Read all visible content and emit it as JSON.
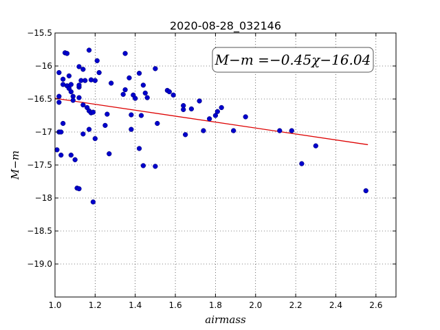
{
  "chart_data": {
    "type": "scatter",
    "title": "2020-08-28_032146",
    "xlabel": "airmass",
    "ylabel": "M−m",
    "xlim": [
      1.0,
      2.7
    ],
    "ylim": [
      -19.5,
      -15.5
    ],
    "y_inverted": true,
    "grid": true,
    "x_ticks": [
      1.0,
      1.2,
      1.4,
      1.6,
      1.8,
      2.0,
      2.2,
      2.4,
      2.6
    ],
    "x_tick_labels": [
      "1.0",
      "1.2",
      "1.4",
      "1.6",
      "1.8",
      "2.0",
      "2.2",
      "2.4",
      "2.6"
    ],
    "y_ticks": [
      -15.5,
      -16.0,
      -16.5,
      -17.0,
      -17.5,
      -18.0,
      -18.5,
      -19.0
    ],
    "y_tick_labels": [
      "−15.5",
      "−16",
      "−16.5",
      "−17",
      "−17.5",
      "−18",
      "−18.5",
      "−19.0"
    ],
    "annotation": "M−m =−0.45χ−16.04",
    "annotation_position": "top-right",
    "point_color": "#0000cc",
    "fit_color": "#dd0000",
    "fit": {
      "slope": -0.45,
      "intercept": -16.04,
      "x_range": [
        1.0,
        2.56
      ]
    },
    "points": [
      [
        1.01,
        -17.27
      ],
      [
        1.02,
        -16.1
      ],
      [
        1.02,
        -16.46
      ],
      [
        1.02,
        -16.55
      ],
      [
        1.02,
        -17.0
      ],
      [
        1.03,
        -17.0
      ],
      [
        1.03,
        -17.35
      ],
      [
        1.04,
        -16.87
      ],
      [
        1.04,
        -16.28
      ],
      [
        1.04,
        -16.2
      ],
      [
        1.05,
        -15.8
      ],
      [
        1.06,
        -15.81
      ],
      [
        1.06,
        -16.3
      ],
      [
        1.07,
        -16.15
      ],
      [
        1.07,
        -16.34
      ],
      [
        1.08,
        -16.28
      ],
      [
        1.08,
        -16.39
      ],
      [
        1.08,
        -17.35
      ],
      [
        1.09,
        -16.46
      ],
      [
        1.09,
        -16.52
      ],
      [
        1.1,
        -17.42
      ],
      [
        1.11,
        -17.85
      ],
      [
        1.12,
        -17.86
      ],
      [
        1.12,
        -16.32
      ],
      [
        1.12,
        -16.29
      ],
      [
        1.12,
        -16.48
      ],
      [
        1.12,
        -16.01
      ],
      [
        1.13,
        -16.22
      ],
      [
        1.14,
        -16.05
      ],
      [
        1.14,
        -17.03
      ],
      [
        1.14,
        -16.59
      ],
      [
        1.15,
        -16.22
      ],
      [
        1.16,
        -16.63
      ],
      [
        1.17,
        -15.76
      ],
      [
        1.17,
        -16.96
      ],
      [
        1.17,
        -16.68
      ],
      [
        1.18,
        -16.71
      ],
      [
        1.18,
        -16.21
      ],
      [
        1.19,
        -16.7
      ],
      [
        1.19,
        -18.06
      ],
      [
        1.2,
        -17.1
      ],
      [
        1.2,
        -16.22
      ],
      [
        1.21,
        -15.92
      ],
      [
        1.22,
        -16.1
      ],
      [
        1.25,
        -16.9
      ],
      [
        1.26,
        -16.73
      ],
      [
        1.27,
        -17.33
      ],
      [
        1.28,
        -16.26
      ],
      [
        1.34,
        -16.43
      ],
      [
        1.35,
        -16.36
      ],
      [
        1.35,
        -15.81
      ],
      [
        1.37,
        -16.18
      ],
      [
        1.38,
        -16.96
      ],
      [
        1.38,
        -16.74
      ],
      [
        1.39,
        -16.44
      ],
      [
        1.4,
        -16.49
      ],
      [
        1.42,
        -16.11
      ],
      [
        1.42,
        -17.25
      ],
      [
        1.43,
        -16.75
      ],
      [
        1.44,
        -16.29
      ],
      [
        1.44,
        -17.51
      ],
      [
        1.45,
        -16.41
      ],
      [
        1.46,
        -16.48
      ],
      [
        1.5,
        -17.52
      ],
      [
        1.5,
        -16.04
      ],
      [
        1.51,
        -16.87
      ],
      [
        1.56,
        -16.37
      ],
      [
        1.57,
        -16.39
      ],
      [
        1.59,
        -16.44
      ],
      [
        1.64,
        -16.6
      ],
      [
        1.64,
        -16.66
      ],
      [
        1.65,
        -17.04
      ],
      [
        1.68,
        -16.65
      ],
      [
        1.72,
        -16.53
      ],
      [
        1.74,
        -16.98
      ],
      [
        1.77,
        -16.8
      ],
      [
        1.8,
        -16.75
      ],
      [
        1.81,
        -16.69
      ],
      [
        1.83,
        -16.63
      ],
      [
        1.89,
        -16.98
      ],
      [
        1.95,
        -16.77
      ],
      [
        2.12,
        -16.98
      ],
      [
        2.18,
        -16.98
      ],
      [
        2.23,
        -17.48
      ],
      [
        2.3,
        -17.21
      ],
      [
        2.55,
        -17.89
      ]
    ]
  }
}
